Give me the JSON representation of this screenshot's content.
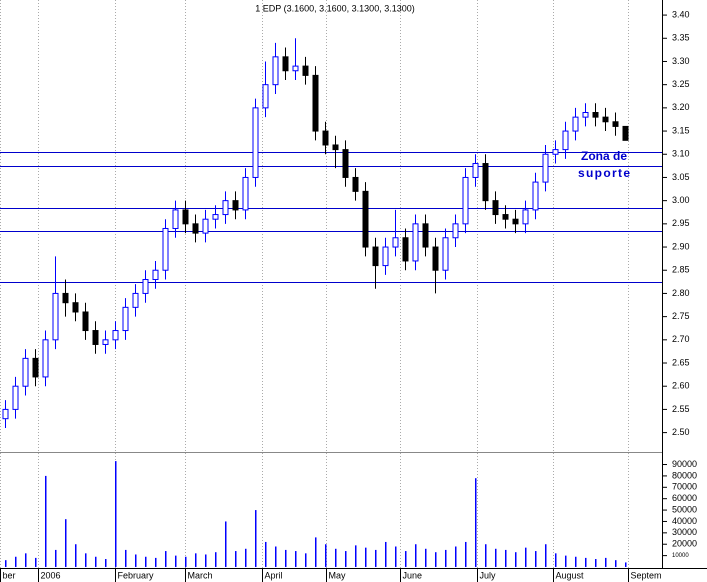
{
  "chart_data": [
    {
      "type": "candlestick",
      "title": "1 EDP (3.1600, 3.1600, 3.1300, 3.1300)",
      "up_color": "#0000ff",
      "down_color": "#000000",
      "open": [
        2.53,
        2.55,
        2.6,
        2.66,
        2.62,
        2.7,
        2.8,
        2.78,
        2.76,
        2.72,
        2.69,
        2.7,
        2.72,
        2.77,
        2.8,
        2.83,
        2.85,
        2.94,
        2.98,
        2.95,
        2.93,
        2.96,
        2.97,
        3.0,
        2.98,
        3.05,
        3.2,
        3.25,
        3.31,
        3.28,
        3.29,
        3.27,
        3.15,
        3.12,
        3.11,
        3.05,
        3.02,
        2.9,
        2.86,
        2.9,
        2.92,
        2.87,
        2.95,
        2.9,
        2.85,
        2.92,
        2.95,
        3.05,
        3.08,
        3.0,
        2.97,
        2.96,
        2.95,
        2.98,
        3.04,
        3.1,
        3.11,
        3.15,
        3.18,
        3.19,
        3.18,
        3.17,
        3.16
      ],
      "high": [
        2.57,
        2.62,
        2.68,
        2.68,
        2.72,
        2.88,
        2.83,
        2.8,
        2.78,
        2.74,
        2.72,
        2.74,
        2.79,
        2.82,
        2.85,
        2.87,
        2.96,
        3.0,
        3.0,
        2.97,
        2.98,
        2.99,
        3.02,
        3.02,
        3.07,
        3.22,
        3.3,
        3.34,
        3.33,
        3.35,
        3.31,
        3.29,
        3.17,
        3.14,
        3.13,
        3.07,
        3.04,
        2.92,
        2.92,
        2.98,
        2.94,
        2.97,
        2.97,
        2.92,
        2.94,
        2.97,
        3.07,
        3.1,
        3.1,
        3.02,
        2.99,
        2.98,
        3.0,
        3.06,
        3.12,
        3.13,
        3.17,
        3.2,
        3.21,
        3.21,
        3.2,
        3.19,
        3.16
      ],
      "low": [
        2.51,
        2.53,
        2.58,
        2.6,
        2.6,
        2.68,
        2.75,
        2.74,
        2.7,
        2.67,
        2.67,
        2.68,
        2.7,
        2.75,
        2.78,
        2.81,
        2.83,
        2.92,
        2.93,
        2.91,
        2.91,
        2.94,
        2.95,
        2.96,
        2.96,
        3.03,
        3.18,
        3.23,
        3.26,
        3.26,
        3.25,
        3.13,
        3.1,
        3.07,
        3.03,
        3.0,
        2.88,
        2.81,
        2.84,
        2.88,
        2.85,
        2.85,
        2.88,
        2.8,
        2.83,
        2.9,
        2.93,
        3.03,
        2.98,
        2.95,
        2.94,
        2.93,
        2.93,
        2.96,
        3.02,
        3.08,
        3.09,
        3.13,
        3.16,
        3.16,
        3.15,
        3.14,
        3.13
      ],
      "close": [
        2.55,
        2.6,
        2.66,
        2.62,
        2.7,
        2.8,
        2.78,
        2.76,
        2.72,
        2.69,
        2.7,
        2.72,
        2.77,
        2.8,
        2.83,
        2.85,
        2.94,
        2.98,
        2.95,
        2.93,
        2.96,
        2.97,
        3.0,
        2.98,
        3.05,
        3.2,
        3.25,
        3.31,
        3.28,
        3.29,
        3.27,
        3.15,
        3.12,
        3.11,
        3.05,
        3.02,
        2.9,
        2.86,
        2.9,
        2.92,
        2.87,
        2.95,
        2.9,
        2.85,
        2.92,
        2.95,
        3.05,
        3.08,
        3.0,
        2.97,
        2.96,
        2.95,
        2.98,
        3.04,
        3.1,
        3.11,
        3.15,
        3.18,
        3.19,
        3.18,
        3.17,
        3.16,
        3.13
      ],
      "ylim": [
        2.4625,
        3.4325
      ],
      "yticks": [
        {
          "value": 2.5,
          "label": "2.50"
        },
        {
          "value": 2.55,
          "label": "2.55"
        },
        {
          "value": 2.6,
          "label": "2.60"
        },
        {
          "value": 2.65,
          "label": "2.65"
        },
        {
          "value": 2.7,
          "label": "2.70"
        },
        {
          "value": 2.75,
          "label": "2.75"
        },
        {
          "value": 2.8,
          "label": "2.80"
        },
        {
          "value": 2.85,
          "label": "2.85"
        },
        {
          "value": 2.9,
          "label": "2.90"
        },
        {
          "value": 2.95,
          "label": "2.95"
        },
        {
          "value": 3.0,
          "label": "3.00"
        },
        {
          "value": 3.05,
          "label": "3.05"
        },
        {
          "value": 3.1,
          "label": "3.10"
        },
        {
          "value": 3.15,
          "label": "3.15"
        },
        {
          "value": 3.2,
          "label": "3.20"
        },
        {
          "value": 3.25,
          "label": "3.25"
        },
        {
          "value": 3.3,
          "label": "3.30"
        },
        {
          "value": 3.35,
          "label": "3.35"
        },
        {
          "value": 3.4,
          "label": "3.40"
        }
      ],
      "hlines": [
        3.105,
        3.075,
        2.985,
        2.935,
        2.825
      ],
      "hline_color": "#0000cc",
      "annotation": [
        "Zona de",
        "suporte"
      ]
    },
    {
      "type": "bar",
      "color": "#0000ff",
      "values": [
        6000,
        9000,
        12000,
        8000,
        80000,
        15000,
        42000,
        20000,
        12000,
        9000,
        7000,
        93000,
        15000,
        11000,
        9000,
        8000,
        14000,
        10000,
        9000,
        12000,
        11000,
        13000,
        40000,
        14000,
        16000,
        50000,
        22000,
        18000,
        15000,
        14000,
        12000,
        26000,
        20000,
        16000,
        14000,
        19000,
        17000,
        15000,
        22000,
        18000,
        14000,
        20000,
        16000,
        13000,
        15000,
        18000,
        22000,
        78000,
        20000,
        16000,
        15000,
        13000,
        17000,
        14000,
        20000,
        12000,
        10000,
        9000,
        8000,
        7000,
        8000,
        6000,
        4000
      ],
      "ylim": [
        0,
        101000
      ],
      "yticks": [
        10000,
        20000,
        30000,
        40000,
        50000,
        60000,
        70000,
        80000,
        90000
      ],
      "xlim": [
        -0.5,
        65.7
      ],
      "xticks": [
        {
          "value": -0.5,
          "label": "ber"
        },
        {
          "value": 3.3,
          "label": "2006"
        },
        {
          "value": 11.0,
          "label": "February"
        },
        {
          "value": 18.0,
          "label": "March"
        },
        {
          "value": 25.7,
          "label": "April"
        },
        {
          "value": 32.1,
          "label": "May"
        },
        {
          "value": 39.5,
          "label": "June"
        },
        {
          "value": 47.2,
          "label": "July"
        },
        {
          "value": 54.8,
          "label": "August"
        },
        {
          "value": 62.3,
          "label": "Septem"
        }
      ],
      "grid": true
    }
  ]
}
